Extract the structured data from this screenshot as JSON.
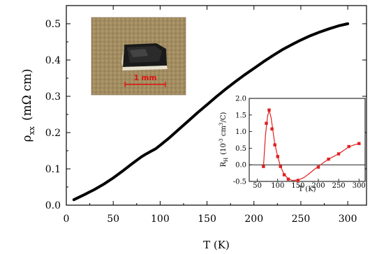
{
  "chart_data": [
    {
      "type": "line",
      "xlabel": "T (K)",
      "ylabel_symbol": "ρ",
      "ylabel_sub": "xx",
      "ylabel_unit": "(mΩ cm)",
      "xlim": [
        0,
        320
      ],
      "ylim": [
        0.0,
        0.55
      ],
      "x_ticks": [
        0,
        50,
        100,
        150,
        200,
        250,
        300
      ],
      "x_tick_labels": [
        "0",
        "50",
        "100",
        "150",
        "200",
        "250",
        "300"
      ],
      "y_ticks": [
        0.0,
        0.1,
        0.2,
        0.3,
        0.4,
        0.5
      ],
      "y_tick_labels": [
        "0.0",
        "0.1",
        "0.2",
        "0.3",
        "0.4",
        "0.5"
      ],
      "grid": false,
      "series": [
        {
          "color": "#000000",
          "x": [
            8,
            20,
            30,
            40,
            50,
            60,
            70,
            80,
            85,
            90,
            95,
            100,
            110,
            120,
            130,
            140,
            150,
            160,
            170,
            180,
            190,
            200,
            210,
            220,
            230,
            240,
            250,
            260,
            270,
            280,
            290,
            300
          ],
          "y": [
            0.015,
            0.03,
            0.043,
            0.058,
            0.075,
            0.094,
            0.114,
            0.133,
            0.141,
            0.148,
            0.155,
            0.165,
            0.186,
            0.209,
            0.232,
            0.255,
            0.277,
            0.299,
            0.32,
            0.34,
            0.359,
            0.377,
            0.395,
            0.412,
            0.428,
            0.442,
            0.455,
            0.467,
            0.477,
            0.486,
            0.494,
            0.5
          ]
        }
      ]
    },
    {
      "type": "line",
      "xlabel": "T (K)",
      "ylabel_main": "R",
      "ylabel_sub": "H",
      "ylabel_unit": "(10",
      "ylabel_sup": "-3",
      "ylabel_unit2": " cm",
      "ylabel_sup2": "3",
      "ylabel_unit3": "/C)",
      "xlim": [
        30,
        315
      ],
      "ylim": [
        -0.5,
        2.0
      ],
      "x_ticks": [
        50,
        100,
        150,
        200,
        250,
        300
      ],
      "x_tick_labels": [
        "50",
        "100",
        "150",
        "200",
        "250",
        "300"
      ],
      "y_ticks": [
        -0.5,
        0.0,
        0.5,
        1.0,
        1.5,
        2.0
      ],
      "y_tick_labels": [
        "-0.5",
        "0.0",
        "0.5",
        "1.0",
        "1.5",
        "2.0"
      ],
      "zero_line": true,
      "series": [
        {
          "color": "#e02020",
          "markers_x": [
            65,
            72,
            79,
            86,
            93,
            100,
            107,
            116,
            126,
            150,
            200,
            225,
            250,
            275,
            300
          ],
          "markers_y": [
            -0.05,
            1.25,
            1.65,
            1.08,
            0.6,
            0.25,
            -0.05,
            -0.3,
            -0.43,
            -0.47,
            -0.07,
            0.17,
            0.33,
            0.55,
            0.64
          ],
          "curve_x": [
            65,
            70,
            75,
            79,
            84,
            88,
            93,
            100,
            107,
            115,
            125,
            135,
            150,
            165,
            180,
            190,
            200,
            212,
            225,
            237,
            250,
            262,
            275,
            288,
            300
          ],
          "curve_y": [
            -0.05,
            0.9,
            1.45,
            1.65,
            1.4,
            1.05,
            0.62,
            0.25,
            -0.05,
            -0.26,
            -0.41,
            -0.47,
            -0.46,
            -0.38,
            -0.24,
            -0.14,
            -0.05,
            0.06,
            0.17,
            0.25,
            0.33,
            0.43,
            0.54,
            0.6,
            0.64
          ]
        }
      ]
    }
  ],
  "photo": {
    "scale_label": "1 mm"
  }
}
